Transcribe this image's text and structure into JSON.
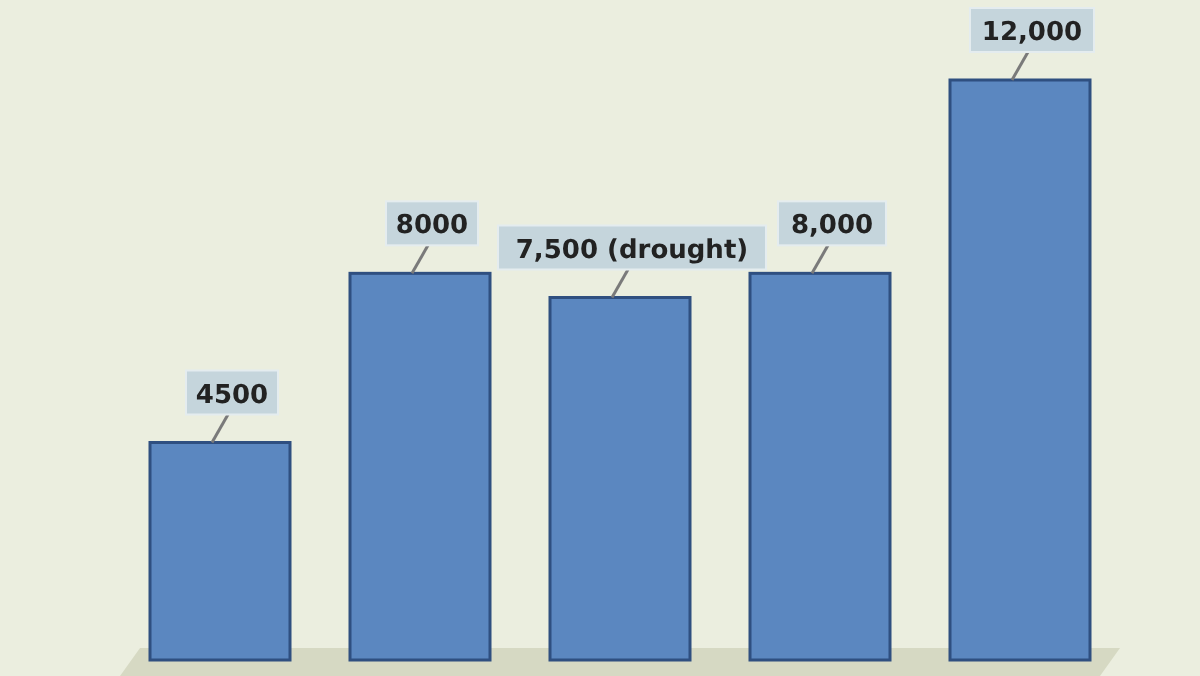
{
  "chart_data": {
    "type": "bar",
    "categories": [
      null,
      null,
      null,
      null,
      null
    ],
    "values": [
      4500,
      8000,
      7500,
      8000,
      12000
    ],
    "color": "#5b87c0",
    "value_labels": [
      "4500",
      "8000",
      "7,500 (drought)",
      "8,000",
      "12,000"
    ]
  }
}
